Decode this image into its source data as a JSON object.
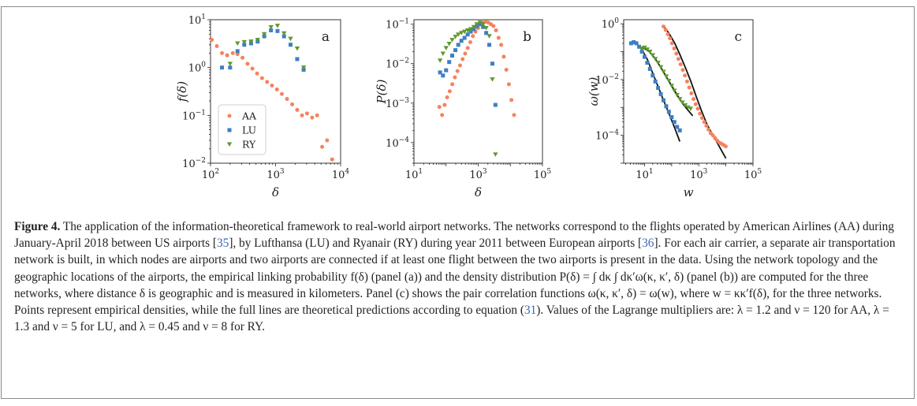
{
  "figure": {
    "label": "Figure 4.",
    "caption": {
      "part1": "The application of the information-theoretical framework to real-world airport networks. The networks correspond to the flights operated by American Airlines (AA) during January-April 2018 between US airports [",
      "ref1": "35",
      "part2": "], by Lufthansa (LU) and Ryanair (RY) during year 2011 between European airports [",
      "ref2": "36",
      "part3": "]. For each air carrier, a separate air transportation network is built, in which nodes are airports and two airports are connected if at least one flight between the two airports is present in the data. Using the network topology and the geographic locations of the airports, the empirical linking probability f(δ) (panel (a)) and the density distribution P(δ) = ∫ dκ ∫ dκ′ω(κ, κ′, δ) (panel (b)) are computed for the three networks, where distance δ is geographic and is measured in kilometers. Panel (c) shows the pair correlation functions ω(κ, κ′, δ) = ω(w), where w = κκ′f(δ), for the three networks. Points represent empirical densities, while the full lines are theoretical predictions according to equation (",
      "ref3": "31",
      "part4": "). Values of the Lagrange multipliers are: λ = 1.2 and ν = 120 for AA, λ = 1.3 and ν = 5 for LU, and λ = 0.45 and ν = 8 for RY."
    }
  },
  "colors": {
    "AA": "#f5825f",
    "LU": "#3f7fc0",
    "RY": "#5e9a2c",
    "theory": "#111111"
  },
  "chart_data": [
    {
      "type": "scatter",
      "panel_label": "a",
      "xlabel": "δ",
      "ylabel": "f(δ)",
      "xscale": "log",
      "yscale": "log",
      "xlim": [
        100,
        10000
      ],
      "ylim": [
        0.01,
        10
      ],
      "xticks": [
        {
          "v": 100,
          "b": "10",
          "e": "2"
        },
        {
          "v": 1000,
          "b": "10",
          "e": "3"
        },
        {
          "v": 10000,
          "b": "10",
          "e": "4"
        }
      ],
      "yticks": [
        {
          "v": 0.01,
          "b": "10",
          "e": "−2"
        },
        {
          "v": 0.1,
          "b": "10",
          "e": "−1"
        },
        {
          "v": 1,
          "b": "10",
          "e": "0"
        },
        {
          "v": 10,
          "b": "10",
          "e": "1"
        }
      ],
      "legend": {
        "position": "bottom-left",
        "entries": [
          "AA",
          "LU",
          "RY"
        ]
      },
      "series": [
        {
          "name": "AA",
          "marker": "circle",
          "x": [
            105,
            125,
            150,
            180,
            220,
            260,
            310,
            370,
            440,
            520,
            620,
            740,
            880,
            1050,
            1250,
            1500,
            1800,
            2150,
            2550,
            3050,
            3650,
            4350,
            5200,
            6200,
            7400
          ],
          "y": [
            3.8,
            2.8,
            2.0,
            1.8,
            2.0,
            1.9,
            1.6,
            1.2,
            0.95,
            0.75,
            0.6,
            0.5,
            0.42,
            0.35,
            0.28,
            0.22,
            0.17,
            0.13,
            0.1,
            0.11,
            0.09,
            0.1,
            0.022,
            0.03,
            0.012
          ]
        },
        {
          "name": "LU",
          "marker": "square",
          "x": [
            150,
            200,
            260,
            330,
            420,
            530,
            670,
            850,
            1070,
            1350,
            1700,
            2150,
            2700
          ],
          "y": [
            1.0,
            1.0,
            2.2,
            3.0,
            3.2,
            3.5,
            4.5,
            6.0,
            5.8,
            4.5,
            3.0,
            1.5,
            0.9
          ]
        },
        {
          "name": "RY",
          "marker": "triangle-down",
          "x": [
            200,
            260,
            330,
            420,
            530,
            670,
            850,
            1070,
            1350,
            1700,
            2150,
            2700
          ],
          "y": [
            1.2,
            3.2,
            3.4,
            3.5,
            3.8,
            5.0,
            7.0,
            7.5,
            5.2,
            4.0,
            2.5,
            1.0
          ]
        }
      ]
    },
    {
      "type": "scatter",
      "panel_label": "b",
      "xlabel": "δ",
      "ylabel": "P(δ)",
      "xscale": "log",
      "yscale": "log",
      "xlim": [
        10,
        100000
      ],
      "ylim": [
        3e-05,
        0.13
      ],
      "xticks": [
        {
          "v": 10,
          "b": "10",
          "e": "1"
        },
        {
          "v": 1000,
          "b": "10",
          "e": "3"
        },
        {
          "v": 100000,
          "b": "10",
          "e": "5"
        }
      ],
      "yticks": [
        {
          "v": 0.0001,
          "b": "10",
          "e": "−4"
        },
        {
          "v": 0.001,
          "b": "10",
          "e": "−3"
        },
        {
          "v": 0.01,
          "b": "10",
          "e": "−2"
        },
        {
          "v": 0.1,
          "b": "10",
          "e": "−1"
        }
      ],
      "series": [
        {
          "name": "AA",
          "marker": "circle",
          "x": [
            62,
            75,
            90,
            108,
            130,
            156,
            188,
            226,
            272,
            327,
            393,
            472,
            568,
            683,
            821,
            987,
            1187,
            1427,
            1716,
            2063,
            2481,
            2983,
            3587,
            4313,
            5187,
            6237,
            7500,
            9018,
            10843,
            13038
          ],
          "y": [
            0.0008,
            0.0005,
            0.0009,
            0.0014,
            0.002,
            0.003,
            0.0045,
            0.0065,
            0.009,
            0.013,
            0.018,
            0.025,
            0.035,
            0.05,
            0.065,
            0.08,
            0.1,
            0.11,
            0.115,
            0.11,
            0.1,
            0.09,
            0.07,
            0.045,
            0.03,
            0.015,
            0.007,
            0.003,
            0.0012,
            0.0005
          ]
        },
        {
          "name": "LU",
          "marker": "square",
          "x": [
            65,
            80,
            100,
            125,
            155,
            195,
            240,
            300,
            375,
            470,
            585,
            730,
            910,
            1140,
            1420,
            1770,
            2210,
            2760,
            3440
          ],
          "y": [
            0.006,
            0.005,
            0.0068,
            0.011,
            0.016,
            0.022,
            0.03,
            0.038,
            0.045,
            0.055,
            0.065,
            0.075,
            0.09,
            0.1,
            0.085,
            0.06,
            0.03,
            0.01,
            0.0009
          ]
        },
        {
          "name": "RY",
          "marker": "triangle-down",
          "x": [
            65,
            80,
            100,
            125,
            155,
            195,
            240,
            300,
            375,
            470,
            585,
            730,
            910,
            1140,
            1420,
            1770,
            2210,
            2760,
            3440
          ],
          "y": [
            0.012,
            0.018,
            0.025,
            0.032,
            0.04,
            0.048,
            0.055,
            0.06,
            0.065,
            0.07,
            0.075,
            0.085,
            0.1,
            0.11,
            0.1,
            0.08,
            0.05,
            0.004,
            5e-05
          ]
        }
      ]
    },
    {
      "type": "scatter",
      "panel_label": "c",
      "xlabel": "w",
      "ylabel": "ω(w)",
      "xscale": "log",
      "yscale": "log",
      "xlim": [
        1.7,
        100000
      ],
      "ylim": [
        1e-05,
        1.4
      ],
      "xticks": [
        {
          "v": 10,
          "b": "10",
          "e": "1"
        },
        {
          "v": 1000,
          "b": "10",
          "e": "3"
        },
        {
          "v": 100000,
          "b": "10",
          "e": "5"
        }
      ],
      "yticks": [
        {
          "v": 0.0001,
          "b": "10",
          "e": "−4"
        },
        {
          "v": 0.01,
          "b": "10",
          "e": "−2"
        },
        {
          "v": 1,
          "b": "10",
          "e": "0"
        }
      ],
      "series": [
        {
          "name": "AA",
          "marker": "circle",
          "x": [
            50,
            60,
            72,
            86,
            103,
            124,
            149,
            178,
            214,
            257,
            308,
            370,
            444,
            533,
            640,
            768,
            921,
            1105,
            1326,
            1591,
            1909,
            2291,
            2749,
            3299,
            3959,
            4751,
            5701,
            6841,
            8209,
            9851
          ],
          "y": [
            0.8,
            0.6,
            0.42,
            0.3,
            0.2,
            0.13,
            0.085,
            0.055,
            0.035,
            0.022,
            0.014,
            0.0085,
            0.0052,
            0.0032,
            0.002,
            0.0013,
            0.0009,
            0.0006,
            0.00042,
            0.0003,
            0.00022,
            0.00016,
            0.00012,
            0.0001,
            8e-05,
            6.5e-05,
            5.5e-05,
            5e-05,
            4.5e-05,
            4e-05
          ]
        },
        {
          "name": "LU",
          "marker": "square",
          "x": [
            3.2,
            4,
            5,
            6.3,
            8,
            10,
            12.6,
            15.8,
            20,
            25,
            31.6,
            39.8,
            50,
            63,
            79,
            100,
            126,
            158,
            200
          ],
          "y": [
            0.2,
            0.22,
            0.2,
            0.15,
            0.1,
            0.065,
            0.04,
            0.024,
            0.014,
            0.0085,
            0.005,
            0.003,
            0.0018,
            0.0011,
            0.0007,
            0.00045,
            0.0003,
            0.0002,
            0.00015
          ]
        },
        {
          "name": "RY",
          "marker": "triangle-down",
          "x": [
            8,
            10,
            12.6,
            15.8,
            20,
            25,
            31.6,
            39.8,
            50,
            63,
            79,
            100,
            126,
            158,
            200,
            251,
            316,
            398,
            501
          ],
          "y": [
            0.13,
            0.14,
            0.12,
            0.1,
            0.075,
            0.055,
            0.04,
            0.028,
            0.019,
            0.013,
            0.009,
            0.006,
            0.004,
            0.0028,
            0.002,
            0.0015,
            0.0012,
            0.001,
            0.0009
          ]
        }
      ],
      "lines": [
        {
          "name": "AA",
          "x": [
            50,
            80,
            130,
            200,
            330,
            500,
            800,
            1300,
            2000,
            3300,
            5000,
            8000,
            10000
          ],
          "y": [
            0.85,
            0.45,
            0.2,
            0.08,
            0.025,
            0.009,
            0.0025,
            0.0007,
            0.00025,
            0.0001,
            5e-05,
            2.2e-05,
            1.5e-05
          ]
        },
        {
          "name": "LU",
          "x": [
            3,
            5,
            8,
            13,
            20,
            33,
            50,
            80,
            130,
            200
          ],
          "y": [
            0.2,
            0.2,
            0.12,
            0.05,
            0.017,
            0.005,
            0.0018,
            0.0006,
            0.00018,
            6e-05
          ]
        },
        {
          "name": "RY",
          "x": [
            7,
            10,
            15,
            25,
            40,
            65,
            100,
            160,
            250,
            400,
            600
          ],
          "y": [
            0.13,
            0.13,
            0.1,
            0.055,
            0.027,
            0.012,
            0.006,
            0.0028,
            0.0014,
            0.0008,
            0.0005
          ]
        }
      ]
    }
  ]
}
